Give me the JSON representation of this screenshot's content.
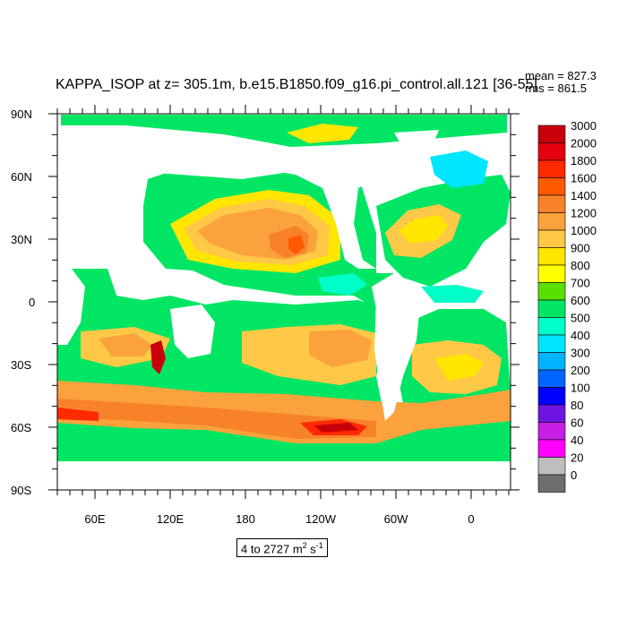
{
  "title": "KAPPA_ISOP at z= 305.1m, b.e15.B1850.f09_g16.pi_control.all.121 [36-55]",
  "stats": {
    "mean": "mean = 827.3",
    "rms": "rms = 861.5"
  },
  "units": {
    "text": "4 to 2727 m",
    "sup1": "2",
    "mid": " s",
    "sup2": "-1"
  },
  "colorbar": {
    "labels": [
      "3000",
      "2000",
      "1800",
      "1600",
      "1400",
      "1200",
      "1000",
      "900",
      "800",
      "700",
      "600",
      "500",
      "400",
      "300",
      "200",
      "100",
      "80",
      "60",
      "40",
      "20",
      "0"
    ],
    "colors": [
      "#c8000a",
      "#e4000f",
      "#ff2a00",
      "#ff5a00",
      "#f7822a",
      "#fba23c",
      "#ffc846",
      "#ffe600",
      "#ffff00",
      "#5ae000",
      "#00e664",
      "#00ffc8",
      "#00e6ff",
      "#00b4ff",
      "#0064ff",
      "#0000ff",
      "#6e14e0",
      "#c81ee6",
      "#ff00ff",
      "#bebebe",
      "#6e6e6e"
    ]
  },
  "axes": {
    "lat_labels": [
      "90N",
      "60N",
      "30N",
      "0",
      "30S",
      "60S",
      "90S"
    ],
    "lon_labels": [
      "60E",
      "120E",
      "180",
      "120W",
      "60W",
      "0"
    ]
  },
  "colors": {
    "land": "#ffffff",
    "ocean_base": "#00e664"
  }
}
